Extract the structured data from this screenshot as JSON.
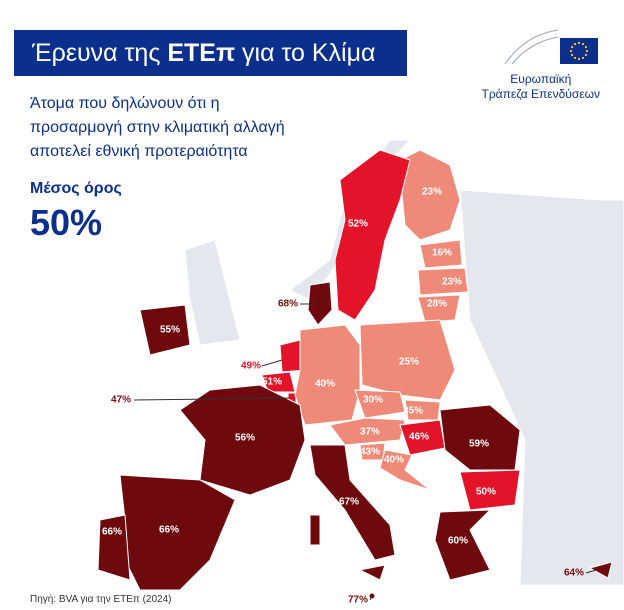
{
  "header": {
    "title": [
      "Έρευνα της",
      "ΕΤΕπ",
      "για το Κλίμα"
    ],
    "logo": [
      "Ευρωπαϊκή",
      "Τράπεζα Επενδύσεων"
    ]
  },
  "subtitle": [
    "Άτομα που δηλώνουν ότι η",
    "προσαρμογή στην κλιματική αλλαγή",
    "αποτελεί εθνική προτεραιότητα"
  ],
  "average": {
    "label": "Μέσος όρος",
    "value": "50%"
  },
  "map": {
    "labels": [
      "23%",
      "52%",
      "16%",
      "23%",
      "28%",
      "68%",
      "55%",
      "49%",
      "51%",
      "47%",
      "40%",
      "25%",
      "30%",
      "35%",
      "37%",
      "46%",
      "43%",
      "40%",
      "59%",
      "50%",
      "56%",
      "67%",
      "66%",
      "66%",
      "60%",
      "77%",
      "64%"
    ]
  },
  "source": "Πηγή: BVA για την ΕΤΕπ (2024)"
}
